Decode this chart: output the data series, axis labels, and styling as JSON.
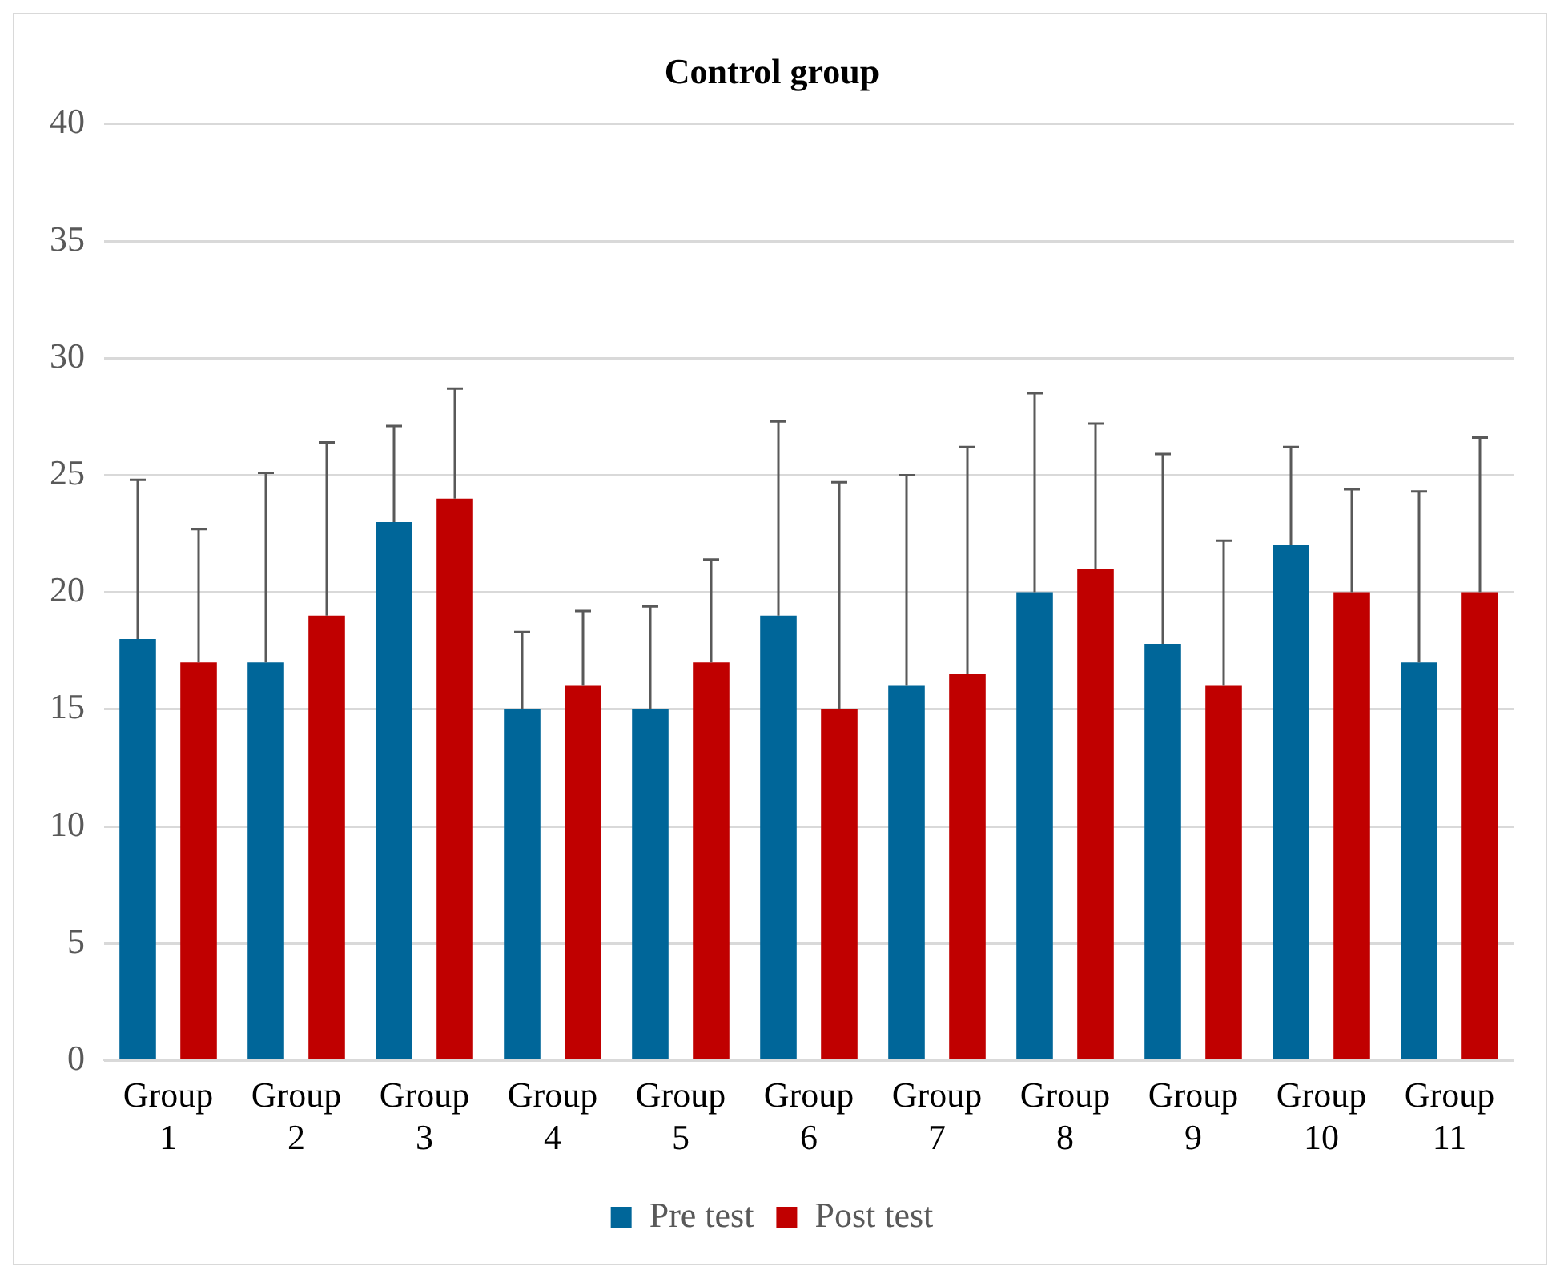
{
  "chart_data": {
    "type": "bar",
    "title": "Control group",
    "categories": [
      "Group 1",
      "Group 2",
      "Group 3",
      "Group 4",
      "Group 5",
      "Group 6",
      "Group 7",
      "Group 8",
      "Group 9",
      "Group 10",
      "Group 11"
    ],
    "series": [
      {
        "name": "Pre test",
        "color": "#006699",
        "values": [
          18,
          17,
          23,
          15,
          15,
          19,
          16,
          20,
          17.8,
          22,
          17
        ],
        "errors": [
          [
            18,
            24.8
          ],
          [
            17,
            25.1
          ],
          [
            23,
            27.1
          ],
          [
            15,
            18.3
          ],
          [
            15,
            19.4
          ],
          [
            19,
            27.3
          ],
          [
            16,
            25
          ],
          [
            20,
            28.5
          ],
          [
            17.8,
            25.9
          ],
          [
            22,
            26.2
          ],
          [
            17,
            24.3
          ]
        ]
      },
      {
        "name": "Post test",
        "color": "#c00000",
        "values": [
          17,
          19,
          24,
          16,
          17,
          15,
          16.5,
          21,
          16,
          20,
          20
        ],
        "errors": [
          [
            17,
            22.7
          ],
          [
            19,
            26.4
          ],
          [
            24,
            28.7
          ],
          [
            16,
            19.2
          ],
          [
            17,
            21.4
          ],
          [
            15,
            24.7
          ],
          [
            16.5,
            26.2
          ],
          [
            21,
            27.2
          ],
          [
            16,
            22.2
          ],
          [
            20,
            24.4
          ],
          [
            20,
            26.6
          ]
        ]
      }
    ],
    "ylim": [
      0,
      40
    ],
    "yticks": [
      0,
      5,
      10,
      15,
      20,
      25,
      30,
      35,
      40
    ],
    "grid": "y",
    "legend": "bottom"
  }
}
